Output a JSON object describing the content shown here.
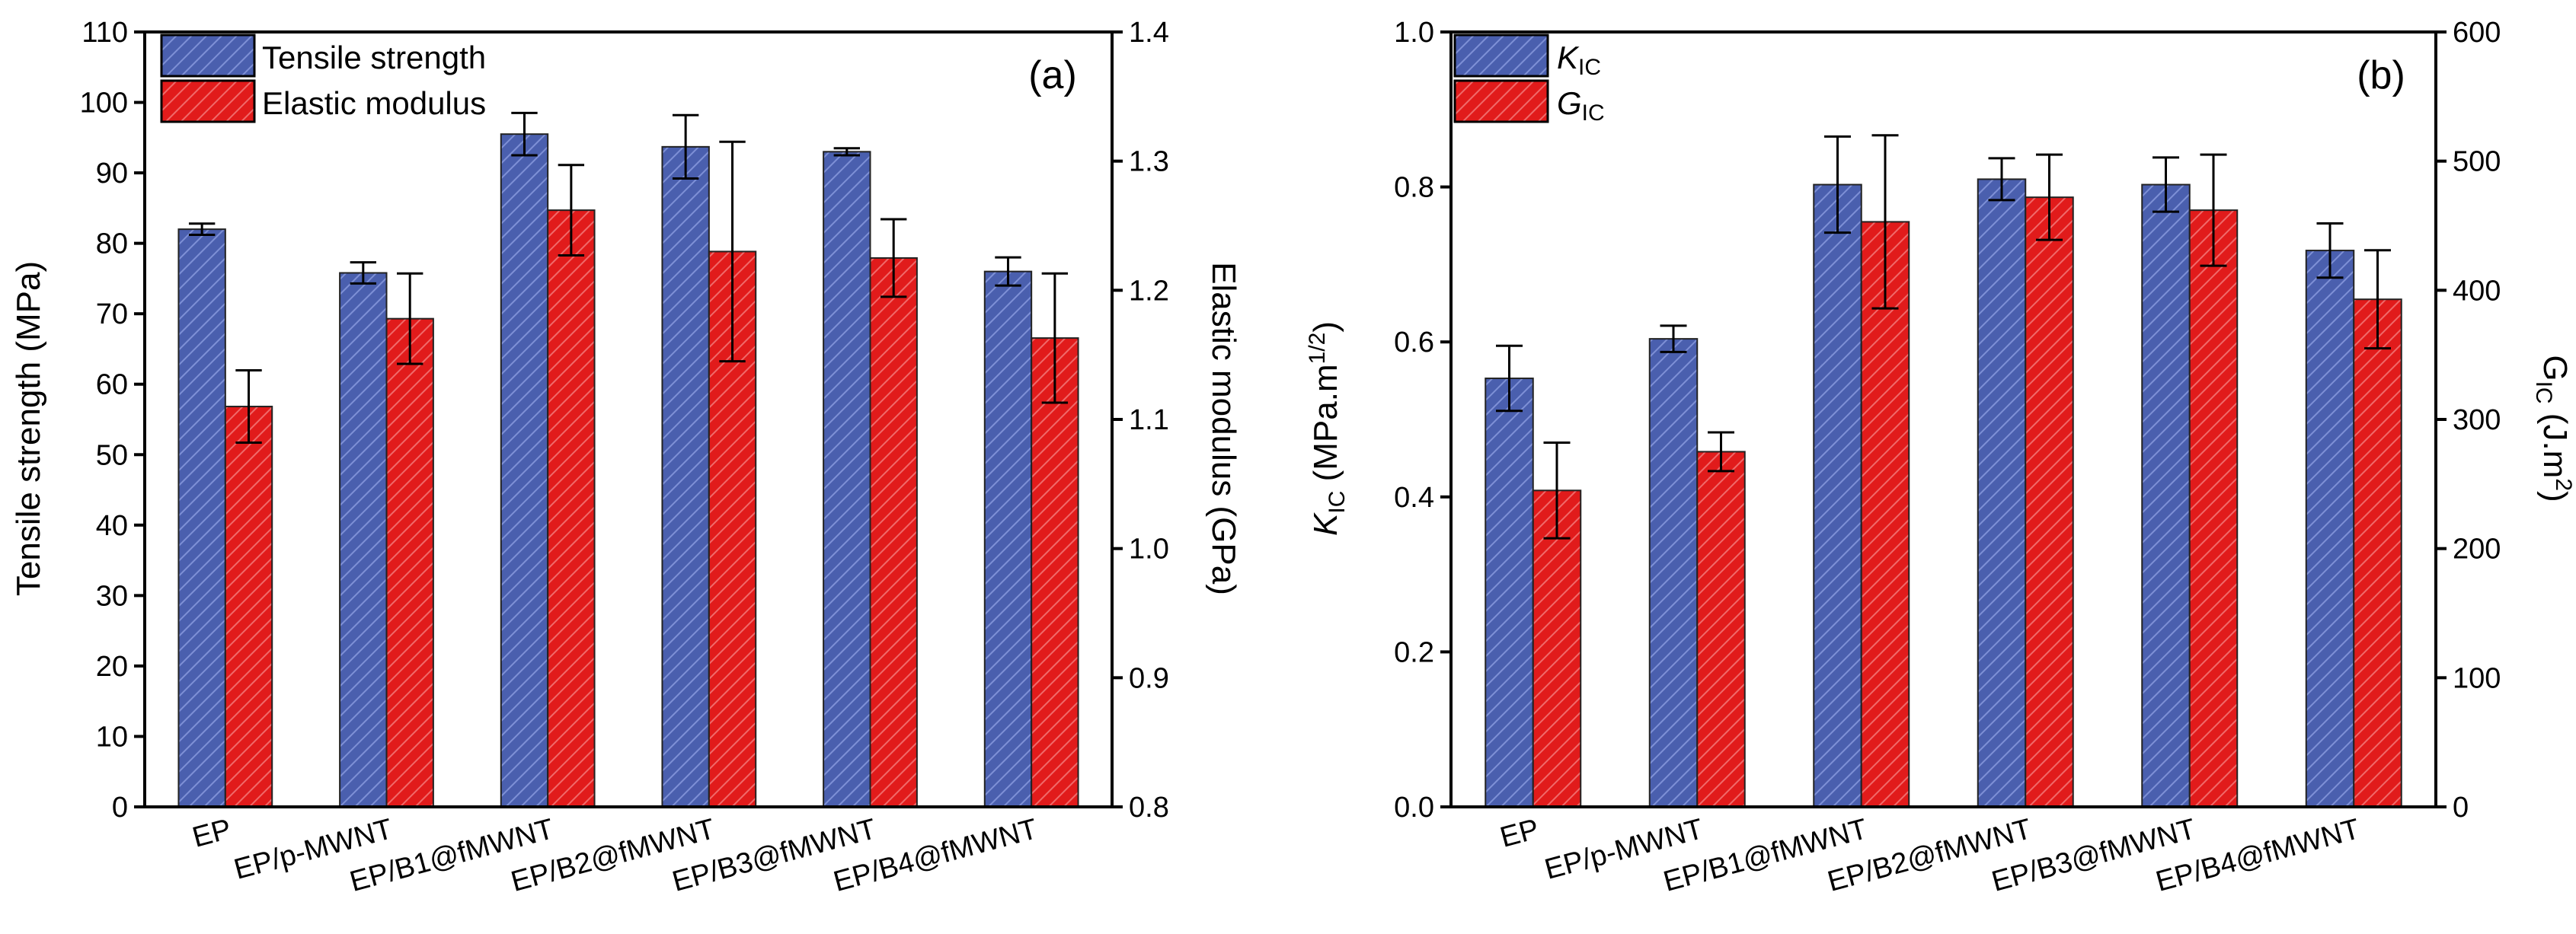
{
  "chart_data": [
    {
      "id": "a",
      "type": "bar",
      "panel_label": "(a)",
      "categories": [
        "EP",
        "EP/p-MWNT",
        "EP/B1@fMWNT",
        "EP/B2@fMWNT",
        "EP/B3@fMWNT",
        "EP/B4@fMWNT"
      ],
      "ylabel_left": "Tensile strength (MPa)",
      "ylabel_right": "Elastic modulus (GPa)",
      "ylim_left": [
        0,
        110
      ],
      "ylim_right": [
        0.8,
        1.4
      ],
      "yticks_left": [
        "0",
        "10",
        "20",
        "30",
        "40",
        "50",
        "60",
        "70",
        "80",
        "90",
        "100",
        "110"
      ],
      "yticks_right": [
        "0.8",
        "0.9",
        "1.0",
        "1.1",
        "1.2",
        "1.3",
        "1.4"
      ],
      "legend_position": "top-left",
      "series": [
        {
          "name": "Tensile strength",
          "axis": "left",
          "color": "#4a5fae",
          "values": [
            82,
            75.8,
            95.5,
            93.7,
            93,
            76
          ],
          "errors": [
            0.8,
            1.5,
            3.0,
            4.5,
            0.5,
            2.0
          ]
        },
        {
          "name": "Elastic modulus",
          "axis": "right",
          "color": "#e11b1b",
          "values": [
            1.11,
            1.178,
            1.262,
            1.23,
            1.225,
            1.163
          ],
          "errors": [
            0.028,
            0.035,
            0.035,
            0.085,
            0.03,
            0.05
          ]
        }
      ]
    },
    {
      "id": "b",
      "type": "bar",
      "panel_label": "(b)",
      "categories": [
        "EP",
        "EP/p-MWNT",
        "EP/B1@fMWNT",
        "EP/B2@fMWNT",
        "EP/B3@fMWNT",
        "EP/B4@fMWNT"
      ],
      "ylabel_left": {
        "main": "K",
        "sub": "IC",
        "rest": " (MPa.m",
        "sup": "1/2",
        "end": ")"
      },
      "ylabel_right": {
        "main": "G",
        "sub": "IC",
        "rest": " (J.m",
        "sup": "2",
        "end": ")"
      },
      "ylim_left": [
        0,
        1.0
      ],
      "ylim_right": [
        0,
        600
      ],
      "yticks_left": [
        "0.0",
        "0.2",
        "0.4",
        "0.6",
        "0.8",
        "1.0"
      ],
      "yticks_right": [
        "0",
        "100",
        "200",
        "300",
        "400",
        "500",
        "600"
      ],
      "legend_position": "top-left",
      "series": [
        {
          "name": "K",
          "name_sub": "IC",
          "axis": "left",
          "color": "#4a5fae",
          "values": [
            0.553,
            0.604,
            0.803,
            0.81,
            0.803,
            0.718
          ],
          "errors": [
            0.042,
            0.017,
            0.062,
            0.027,
            0.035,
            0.035
          ]
        },
        {
          "name": "G",
          "name_sub": "IC",
          "axis": "right",
          "color": "#e11b1b",
          "values": [
            245,
            275,
            453,
            472,
            462,
            393
          ],
          "errors": [
            37,
            15,
            67,
            33,
            43,
            38
          ]
        }
      ]
    }
  ]
}
